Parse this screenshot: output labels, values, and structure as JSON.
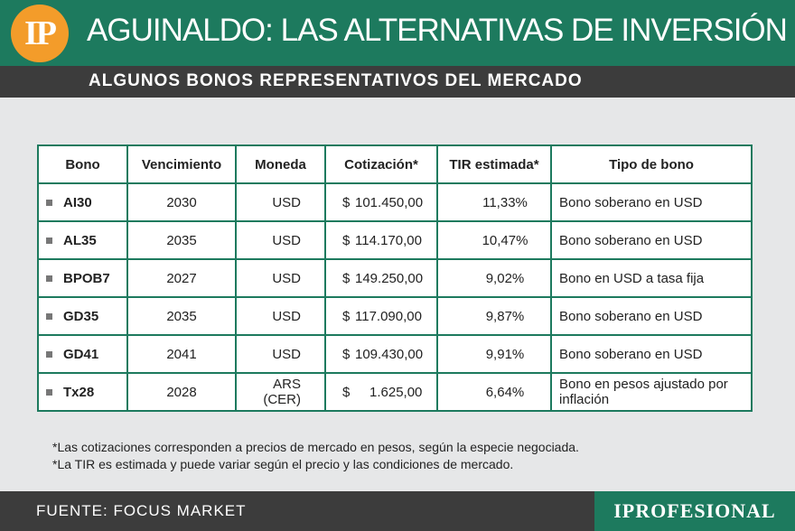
{
  "header": {
    "logo_text": "IP",
    "title": "AGUINALDO: LAS ALTERNATIVAS DE INVERSIÓN",
    "subtitle": "ALGUNOS BONOS REPRESENTATIVOS DEL MERCADO"
  },
  "table": {
    "headers": [
      "Bono",
      "Vencimiento",
      "Moneda",
      "Cotización*",
      "TIR estimada*",
      "Tipo de bono"
    ],
    "rows": [
      {
        "bono": "AI30",
        "vencimiento": "2030",
        "moneda": "USD",
        "currency": "$",
        "cotizacion": "101.450,00",
        "tir": "11,33%",
        "tipo": "Bono soberano en USD"
      },
      {
        "bono": "AL35",
        "vencimiento": "2035",
        "moneda": "USD",
        "currency": "$",
        "cotizacion": "114.170,00",
        "tir": "10,47%",
        "tipo": "Bono soberano en USD"
      },
      {
        "bono": "BPOB7",
        "vencimiento": "2027",
        "moneda": "USD",
        "currency": "$",
        "cotizacion": "149.250,00",
        "tir": "9,02%",
        "tipo": "Bono en USD a tasa fija"
      },
      {
        "bono": "GD35",
        "vencimiento": "2035",
        "moneda": "USD",
        "currency": "$",
        "cotizacion": "117.090,00",
        "tir": "9,87%",
        "tipo": "Bono soberano en USD"
      },
      {
        "bono": "GD41",
        "vencimiento": "2041",
        "moneda": "USD",
        "currency": "$",
        "cotizacion": "109.430,00",
        "tir": "9,91%",
        "tipo": "Bono soberano en USD"
      },
      {
        "bono": "Tx28",
        "vencimiento": "2028",
        "moneda": "ARS (CER)",
        "currency": "$",
        "cotizacion": "1.625,00",
        "tir": "6,64%",
        "tipo": "Bono en pesos ajustado por inflación"
      }
    ]
  },
  "notes": [
    "*Las cotizaciones corresponden a precios de mercado en pesos, según la especie negociada.",
    "*La TIR es estimada y puede variar según el precio y las condiciones de mercado."
  ],
  "footer": {
    "source": "FUENTE: FOCUS MARKET",
    "brand": "IPROFESIONAL"
  },
  "colors": {
    "green": "#1d7a5e",
    "dark": "#3c3c3c",
    "orange": "#f39c2a",
    "background": "#e6e7e8"
  }
}
